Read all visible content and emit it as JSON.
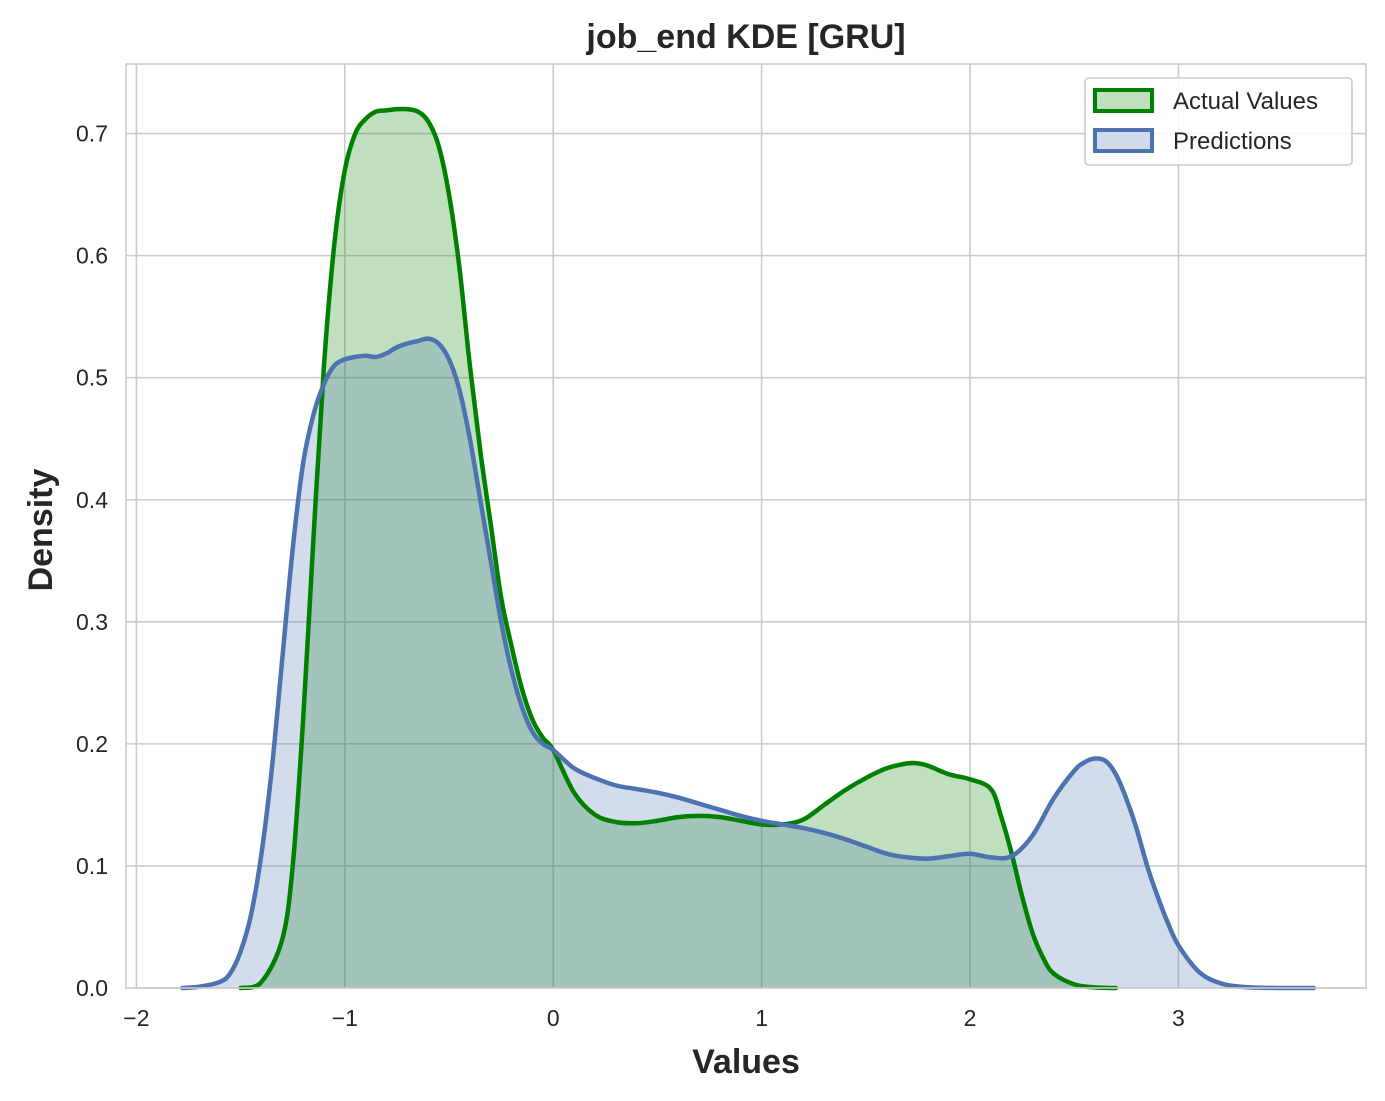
{
  "chart_data": {
    "type": "area",
    "title": "job_end KDE [GRU]",
    "xlabel": "Values",
    "ylabel": "Density",
    "xlim": [
      -2.05,
      3.9
    ],
    "ylim": [
      0,
      0.757
    ],
    "xticks": [
      -2,
      -1,
      0,
      1,
      2,
      3
    ],
    "xtick_labels": [
      "−2",
      "−1",
      "0",
      "1",
      "2",
      "3"
    ],
    "yticks": [
      0.0,
      0.1,
      0.2,
      0.3,
      0.4,
      0.5,
      0.6,
      0.7
    ],
    "ytick_labels": [
      "0.0",
      "0.1",
      "0.2",
      "0.3",
      "0.4",
      "0.5",
      "0.6",
      "0.7"
    ],
    "grid": true,
    "legend": "top-right",
    "series": [
      {
        "name": "Actual Values",
        "color": "#008000",
        "fill": "#bfe0bf",
        "x": [
          -1.5,
          -1.4,
          -1.3,
          -1.25,
          -1.2,
          -1.15,
          -1.1,
          -1.05,
          -1.0,
          -0.95,
          -0.9,
          -0.85,
          -0.8,
          -0.75,
          -0.7,
          -0.65,
          -0.6,
          -0.55,
          -0.5,
          -0.45,
          -0.4,
          -0.35,
          -0.3,
          -0.25,
          -0.2,
          -0.15,
          -0.1,
          -0.05,
          0.0,
          0.1,
          0.2,
          0.3,
          0.4,
          0.5,
          0.6,
          0.7,
          0.8,
          0.9,
          1.0,
          1.1,
          1.2,
          1.3,
          1.4,
          1.5,
          1.6,
          1.7,
          1.75,
          1.8,
          1.9,
          2.0,
          2.1,
          2.15,
          2.2,
          2.25,
          2.3,
          2.35,
          2.4,
          2.5,
          2.6,
          2.7
        ],
        "y": [
          0.0,
          0.005,
          0.04,
          0.1,
          0.22,
          0.37,
          0.51,
          0.61,
          0.67,
          0.7,
          0.712,
          0.718,
          0.719,
          0.72,
          0.72,
          0.718,
          0.71,
          0.69,
          0.65,
          0.59,
          0.51,
          0.44,
          0.38,
          0.32,
          0.28,
          0.245,
          0.22,
          0.205,
          0.195,
          0.16,
          0.142,
          0.136,
          0.135,
          0.137,
          0.14,
          0.141,
          0.14,
          0.137,
          0.134,
          0.134,
          0.138,
          0.15,
          0.162,
          0.172,
          0.18,
          0.184,
          0.184,
          0.182,
          0.175,
          0.171,
          0.163,
          0.14,
          0.11,
          0.075,
          0.045,
          0.025,
          0.012,
          0.003,
          0.0005,
          0.0
        ]
      },
      {
        "name": "Predictions",
        "color": "#4c72b0",
        "fill": "#d0daeb",
        "x": [
          -1.78,
          -1.7,
          -1.6,
          -1.55,
          -1.5,
          -1.45,
          -1.4,
          -1.35,
          -1.3,
          -1.25,
          -1.2,
          -1.15,
          -1.1,
          -1.05,
          -1.0,
          -0.95,
          -0.9,
          -0.85,
          -0.8,
          -0.75,
          -0.7,
          -0.65,
          -0.6,
          -0.55,
          -0.5,
          -0.45,
          -0.4,
          -0.35,
          -0.3,
          -0.25,
          -0.2,
          -0.15,
          -0.1,
          -0.05,
          0.0,
          0.1,
          0.2,
          0.3,
          0.4,
          0.5,
          0.6,
          0.7,
          0.8,
          0.9,
          1.0,
          1.1,
          1.2,
          1.3,
          1.4,
          1.5,
          1.6,
          1.7,
          1.8,
          1.9,
          2.0,
          2.1,
          2.2,
          2.3,
          2.4,
          2.5,
          2.55,
          2.6,
          2.65,
          2.7,
          2.75,
          2.8,
          2.85,
          2.9,
          2.95,
          3.0,
          3.1,
          3.2,
          3.3,
          3.4,
          3.5,
          3.65
        ],
        "y": [
          0.0,
          0.001,
          0.005,
          0.012,
          0.03,
          0.06,
          0.11,
          0.18,
          0.27,
          0.36,
          0.43,
          0.47,
          0.495,
          0.51,
          0.515,
          0.517,
          0.518,
          0.517,
          0.52,
          0.525,
          0.528,
          0.53,
          0.532,
          0.528,
          0.515,
          0.49,
          0.45,
          0.4,
          0.35,
          0.3,
          0.26,
          0.23,
          0.21,
          0.2,
          0.195,
          0.18,
          0.172,
          0.166,
          0.163,
          0.16,
          0.156,
          0.151,
          0.146,
          0.141,
          0.137,
          0.134,
          0.131,
          0.127,
          0.122,
          0.116,
          0.11,
          0.107,
          0.106,
          0.108,
          0.11,
          0.107,
          0.108,
          0.125,
          0.155,
          0.178,
          0.185,
          0.188,
          0.186,
          0.175,
          0.155,
          0.13,
          0.1,
          0.075,
          0.053,
          0.035,
          0.013,
          0.004,
          0.001,
          0.0002,
          0.0,
          0.0
        ]
      }
    ]
  }
}
